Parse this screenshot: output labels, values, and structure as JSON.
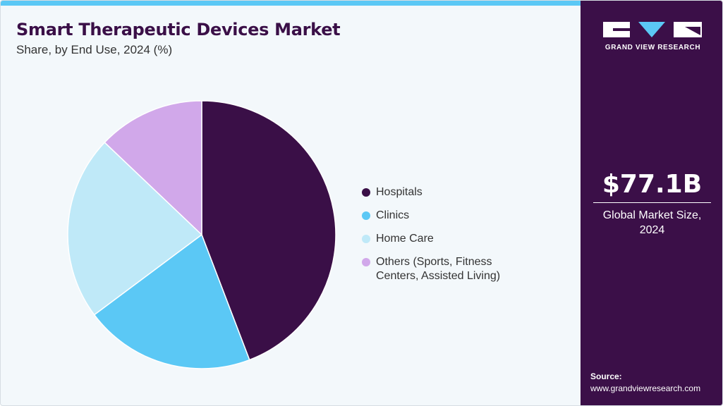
{
  "header": {
    "title": "Smart Therapeutic Devices Market",
    "subtitle": "Share, by End Use, 2024 (%)"
  },
  "chart_data": {
    "type": "pie",
    "title": "Smart Therapeutic Devices Market",
    "subtitle": "Share, by End Use, 2024 (%)",
    "categories": [
      "Hospitals",
      "Clinics",
      "Home Care",
      "Others (Sports, Fitness Centers, Assisted Living)"
    ],
    "values": [
      44.2,
      20.6,
      22.3,
      12.9
    ],
    "colors": [
      "#3a0f47",
      "#5bc8f5",
      "#bfe9f8",
      "#d1a8ea"
    ],
    "legend_position": "right"
  },
  "legend": {
    "items": [
      {
        "label": "Hospitals",
        "color": "#3a0f47"
      },
      {
        "label": "Clinics",
        "color": "#5bc8f5"
      },
      {
        "label": "Home Care",
        "color": "#bfe9f8"
      },
      {
        "label": "Others (Sports, Fitness Centers, Assisted Living)",
        "color": "#d1a8ea"
      }
    ]
  },
  "side_panel": {
    "logo_text": "GRAND VIEW RESEARCH",
    "market_value": "$77.1B",
    "market_caption": "Global Market Size, 2024",
    "source_label": "Source:",
    "source_url": "www.grandviewresearch.com",
    "background_color": "#3b0f48",
    "accent_color": "#5bc8f5"
  }
}
